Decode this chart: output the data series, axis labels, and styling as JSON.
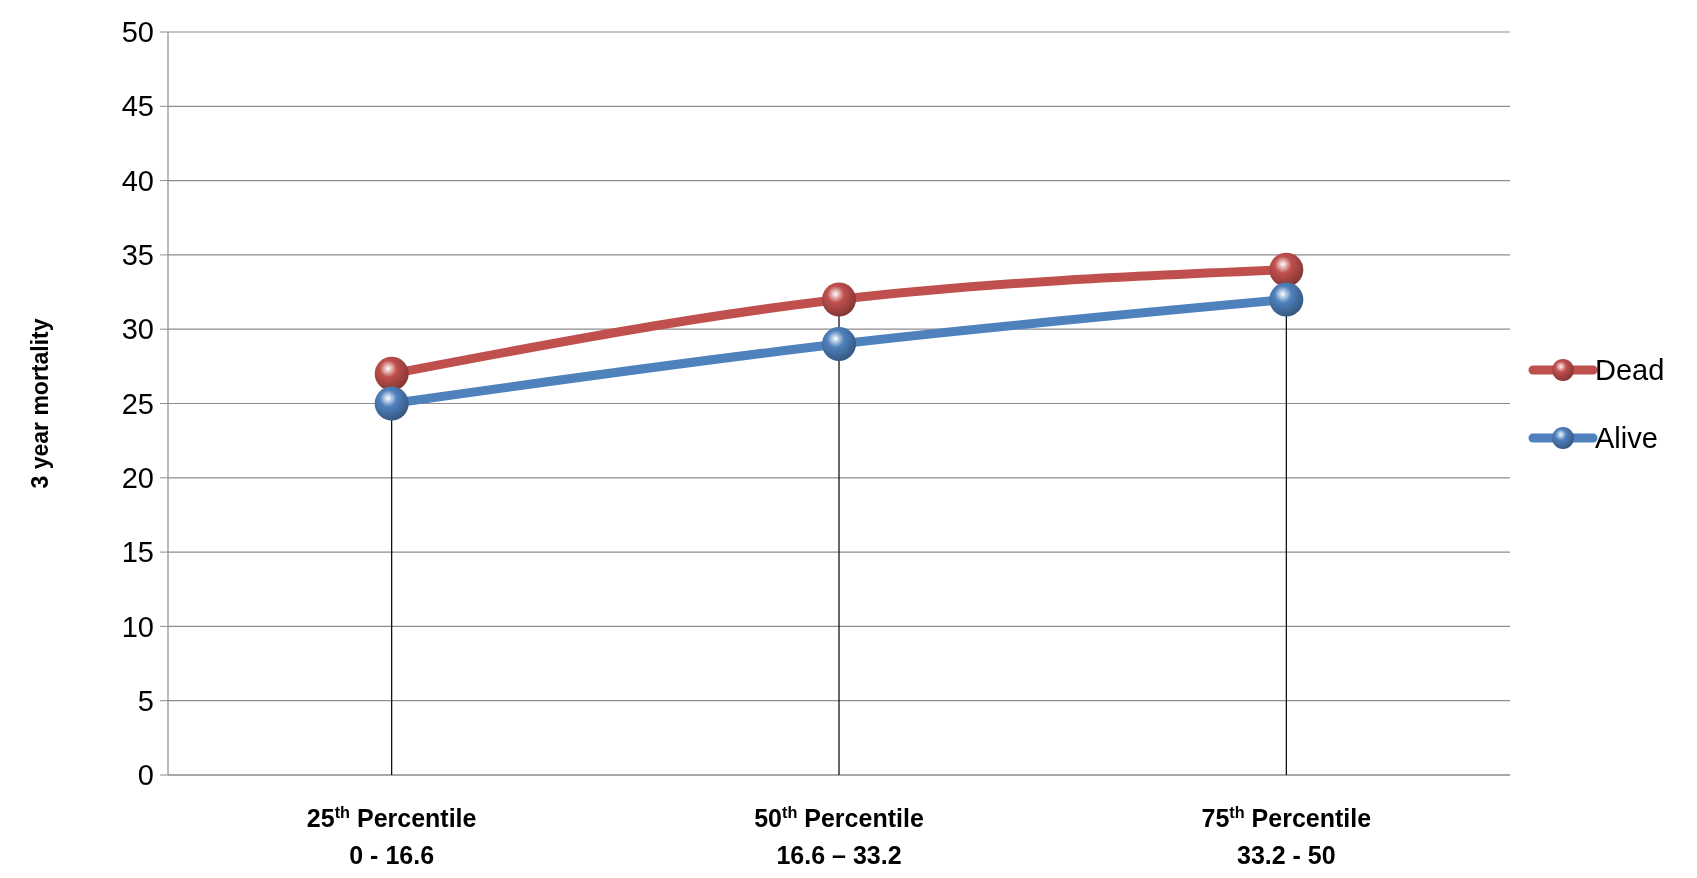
{
  "chart_data": {
    "type": "line",
    "ylabel": "3 year mortality",
    "categories": [
      "25$^{th}$ Percentile\n0 - 16.6",
      "50$^{th}$ Percentile\n16.6 – 33.2",
      "75$^{th}$ Percentile\n33.2 - 50"
    ],
    "series": [
      {
        "name": "Dead",
        "color": "#c0504d",
        "values": [
          27,
          32,
          34
        ],
        "errors": [
          [
            27,
            0
          ],
          [
            32,
            0
          ],
          [
            34,
            0
          ]
        ]
      },
      {
        "name": "Alive",
        "color": "#4f81bd",
        "values": [
          25,
          29,
          32
        ]
      }
    ],
    "ylim": [
      0,
      50
    ],
    "yticks": [
      0,
      5,
      10,
      15,
      20,
      25,
      30,
      35,
      40,
      45,
      50
    ],
    "grid": "y",
    "legend": "right",
    "marker": "circle",
    "line_style": "solid"
  }
}
